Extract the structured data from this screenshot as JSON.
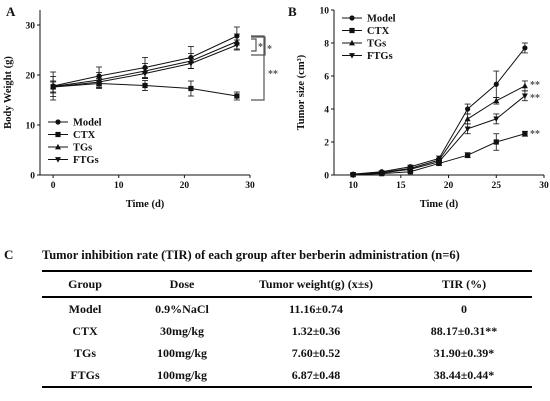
{
  "panels": {
    "a_letter": "A",
    "b_letter": "B",
    "c_letter": "C"
  },
  "legend_labels": [
    "Model",
    "CTX",
    "TGs",
    "FTGs"
  ],
  "annotations": {
    "a_single_1": "*",
    "a_single_2": "*",
    "a_double": "**",
    "b_tgs": "**",
    "b_ftgs": "**",
    "b_ctx": "**"
  },
  "chart_data": [
    {
      "type": "line",
      "panel": "A",
      "title": "",
      "xlabel": "Time (d)",
      "ylabel": "Body Weight (g)",
      "xlim": [
        -2,
        30
      ],
      "ylim": [
        0,
        33
      ],
      "xticks": [
        0,
        10,
        20,
        30
      ],
      "yticks": [
        0,
        10,
        20,
        30
      ],
      "legend_position": "bottom-left",
      "grid": false,
      "x": [
        0,
        7,
        14,
        21,
        28
      ],
      "series": [
        {
          "name": "Model",
          "marker": "circle",
          "values": [
            17.8,
            19.8,
            21.5,
            23.5,
            27.8
          ],
          "errors": [
            2.8,
            1.8,
            2.0,
            2.2,
            1.8
          ]
        },
        {
          "name": "CTX",
          "marker": "square",
          "values": [
            17.6,
            18.3,
            17.9,
            17.3,
            15.8
          ],
          "errors": [
            1.0,
            1.0,
            1.0,
            1.5,
            0.8
          ]
        },
        {
          "name": "TGs",
          "marker": "triangle-up",
          "values": [
            17.7,
            19.0,
            20.8,
            22.8,
            26.7
          ],
          "errors": [
            2.0,
            1.5,
            1.5,
            1.5,
            1.5
          ]
        },
        {
          "name": "FTGs",
          "marker": "triangle-down",
          "values": [
            17.6,
            18.6,
            20.3,
            22.3,
            26.0
          ],
          "errors": [
            1.2,
            1.0,
            1.0,
            1.0,
            1.0
          ]
        }
      ]
    },
    {
      "type": "line",
      "panel": "B",
      "title": "",
      "xlabel": "Time (d)",
      "ylabel": "Tumor size (cm³)",
      "xlim": [
        8,
        30
      ],
      "ylim": [
        0,
        10
      ],
      "xticks": [
        10,
        15,
        20,
        25,
        30
      ],
      "yticks": [
        0,
        2,
        4,
        6,
        8,
        10
      ],
      "legend_position": "top-left",
      "grid": false,
      "x": [
        10,
        13,
        16,
        19,
        22,
        25,
        28
      ],
      "series": [
        {
          "name": "Model",
          "marker": "circle",
          "values": [
            0.05,
            0.2,
            0.5,
            1.0,
            4.0,
            5.5,
            7.7
          ],
          "errors": [
            0.05,
            0.05,
            0.1,
            0.15,
            0.3,
            0.8,
            0.3
          ]
        },
        {
          "name": "CTX",
          "marker": "square",
          "values": [
            0.02,
            0.08,
            0.2,
            0.7,
            1.2,
            2.0,
            2.5
          ],
          "errors": [
            0.02,
            0.04,
            0.06,
            0.1,
            0.15,
            0.5,
            0.15
          ]
        },
        {
          "name": "TGs",
          "marker": "triangle-up",
          "values": [
            0.04,
            0.15,
            0.4,
            0.9,
            3.4,
            4.5,
            5.4
          ],
          "errors": [
            0.03,
            0.05,
            0.1,
            0.1,
            0.3,
            0.2,
            0.3
          ]
        },
        {
          "name": "FTGs",
          "marker": "triangle-down",
          "values": [
            0.03,
            0.12,
            0.35,
            0.8,
            2.8,
            3.4,
            4.8
          ],
          "errors": [
            0.03,
            0.05,
            0.08,
            0.1,
            0.3,
            0.3,
            0.3
          ]
        }
      ]
    },
    {
      "type": "table",
      "panel": "C",
      "title": "Tumor inhibition rate (TIR) of each group after berberin administration (n=6)",
      "columns": [
        "Group",
        "Dose",
        "Tumor weight(g) (x±s)",
        "TIR (%)"
      ],
      "rows": [
        [
          "Model",
          "0.9%NaCl",
          "11.16±0.74",
          "0"
        ],
        [
          "CTX",
          "30mg/kg",
          "1.32±0.36",
          "88.17±0.31**"
        ],
        [
          "TGs",
          "100mg/kg",
          "7.60±0.52",
          "31.90±0.39*"
        ],
        [
          "FTGs",
          "100mg/kg",
          "6.87±0.48",
          "38.44±0.44*"
        ]
      ]
    }
  ]
}
